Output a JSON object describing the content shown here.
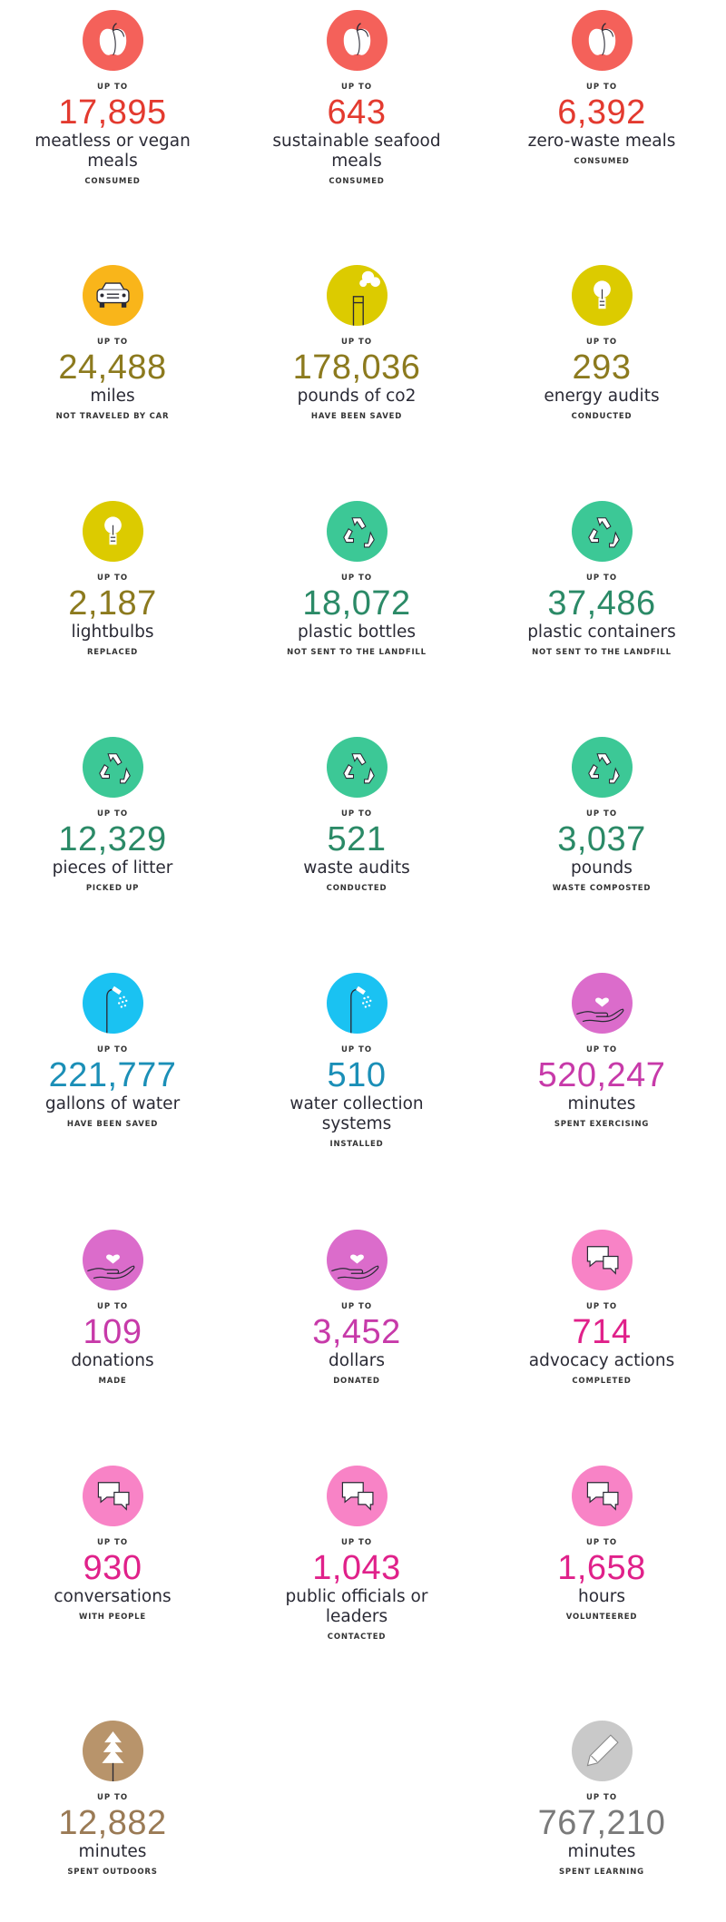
{
  "rows": [
    [
      {
        "icon": "apple",
        "color": "#f4615a",
        "number_color": "#e33a2f",
        "prefix": "UP TO",
        "value": "17,895",
        "label": "meatless or vegan meals",
        "note": "CONSUMED"
      },
      {
        "icon": "apple",
        "color": "#f4615a",
        "number_color": "#e33a2f",
        "prefix": "UP TO",
        "value": "643",
        "label": "sustainable seafood meals",
        "note": "CONSUMED"
      },
      {
        "icon": "apple",
        "color": "#f4615a",
        "number_color": "#e33a2f",
        "prefix": "UP TO",
        "value": "6,392",
        "label": "zero-waste meals",
        "note": "CONSUMED"
      }
    ],
    [
      {
        "icon": "car",
        "color": "#f9b51a",
        "number_color": "#8c7a1e",
        "prefix": "UP TO",
        "value": "24,488",
        "label": "miles",
        "note": "NOT TRAVELED BY CAR"
      },
      {
        "icon": "factory",
        "color": "#dccb00",
        "number_color": "#8c7a1e",
        "prefix": "UP TO",
        "value": "178,036",
        "label": "pounds of co2",
        "note": "HAVE BEEN SAVED"
      },
      {
        "icon": "bulb",
        "color": "#dccb00",
        "number_color": "#8c7a1e",
        "prefix": "UP TO",
        "value": "293",
        "label": "energy audits",
        "note": "CONDUCTED"
      }
    ],
    [
      {
        "icon": "bulb",
        "color": "#dccb00",
        "number_color": "#8c7a1e",
        "prefix": "UP TO",
        "value": "2,187",
        "label": "lightbulbs",
        "note": "REPLACED"
      },
      {
        "icon": "recycle",
        "color": "#3cc896",
        "number_color": "#2b8a67",
        "prefix": "UP TO",
        "value": "18,072",
        "label": "plastic bottles",
        "note": "NOT SENT TO THE LANDFILL"
      },
      {
        "icon": "recycle",
        "color": "#3cc896",
        "number_color": "#2b8a67",
        "prefix": "UP TO",
        "value": "37,486",
        "label": "plastic containers",
        "note": "NOT SENT TO THE LANDFILL"
      }
    ],
    [
      {
        "icon": "recycle",
        "color": "#3cc896",
        "number_color": "#2b8a67",
        "prefix": "UP TO",
        "value": "12,329",
        "label": "pieces of litter",
        "note": "PICKED UP"
      },
      {
        "icon": "recycle",
        "color": "#3cc896",
        "number_color": "#2b8a67",
        "prefix": "UP TO",
        "value": "521",
        "label": "waste audits",
        "note": "CONDUCTED"
      },
      {
        "icon": "recycle",
        "color": "#3cc896",
        "number_color": "#2b8a67",
        "prefix": "UP TO",
        "value": "3,037",
        "label": "pounds",
        "note": "WASTE COMPOSTED"
      }
    ],
    [
      {
        "icon": "shower",
        "color": "#1ac2f2",
        "number_color": "#1b8fb7",
        "prefix": "UP TO",
        "value": "221,777",
        "label": "gallons of water",
        "note": "HAVE BEEN SAVED"
      },
      {
        "icon": "shower",
        "color": "#1ac2f2",
        "number_color": "#1b8fb7",
        "prefix": "UP TO",
        "value": "510",
        "label": "water collection systems",
        "note": "INSTALLED"
      },
      {
        "icon": "hand",
        "color": "#db6ccb",
        "number_color": "#c73aa9",
        "prefix": "UP TO",
        "value": "520,247",
        "label": "minutes",
        "note": "SPENT EXERCISING"
      }
    ],
    [
      {
        "icon": "hand",
        "color": "#db6ccb",
        "number_color": "#c73aa9",
        "prefix": "UP TO",
        "value": "109",
        "label": "donations",
        "note": "MADE"
      },
      {
        "icon": "hand",
        "color": "#db6ccb",
        "number_color": "#c73aa9",
        "prefix": "UP TO",
        "value": "3,452",
        "label": "dollars",
        "note": "DONATED"
      },
      {
        "icon": "speech",
        "color": "#f883c6",
        "number_color": "#e0218a",
        "prefix": "UP TO",
        "value": "714",
        "label": "advocacy actions",
        "note": "COMPLETED"
      }
    ],
    [
      {
        "icon": "speech",
        "color": "#f883c6",
        "number_color": "#e0218a",
        "prefix": "UP TO",
        "value": "930",
        "label": "conversations",
        "note": "WITH PEOPLE"
      },
      {
        "icon": "speech",
        "color": "#f883c6",
        "number_color": "#e0218a",
        "prefix": "UP TO",
        "value": "1,043",
        "label": "public officials or leaders",
        "note": "CONTACTED"
      },
      {
        "icon": "speech",
        "color": "#f883c6",
        "number_color": "#e0218a",
        "prefix": "UP TO",
        "value": "1,658",
        "label": "hours",
        "note": "VOLUNTEERED"
      }
    ],
    [
      {
        "icon": "tree",
        "color": "#b8946b",
        "number_color": "#9a7a55",
        "prefix": "UP TO",
        "value": "12,882",
        "label": "minutes",
        "note": "SPENT OUTDOORS"
      },
      {
        "icon": "pencil",
        "color": "#c9c9c9",
        "number_color": "#7a7a7a",
        "prefix": "UP TO",
        "value": "767,210",
        "label": "minutes",
        "note": "SPENT LEARNING"
      }
    ]
  ]
}
